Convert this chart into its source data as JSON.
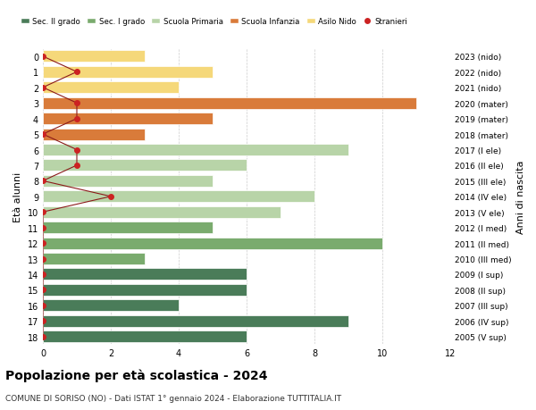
{
  "ages": [
    18,
    17,
    16,
    15,
    14,
    13,
    12,
    11,
    10,
    9,
    8,
    7,
    6,
    5,
    4,
    3,
    2,
    1,
    0
  ],
  "right_labels": [
    "2005 (V sup)",
    "2006 (IV sup)",
    "2007 (III sup)",
    "2008 (II sup)",
    "2009 (I sup)",
    "2010 (III med)",
    "2011 (II med)",
    "2012 (I med)",
    "2013 (V ele)",
    "2014 (IV ele)",
    "2015 (III ele)",
    "2016 (II ele)",
    "2017 (I ele)",
    "2018 (mater)",
    "2019 (mater)",
    "2020 (mater)",
    "2021 (nido)",
    "2022 (nido)",
    "2023 (nido)"
  ],
  "bar_values": [
    6,
    9,
    4,
    6,
    6,
    3,
    10,
    5,
    7,
    8,
    5,
    6,
    9,
    3,
    5,
    11,
    4,
    5,
    3
  ],
  "bar_colors": [
    "#4a7c59",
    "#4a7c59",
    "#4a7c59",
    "#4a7c59",
    "#4a7c59",
    "#7aab6e",
    "#7aab6e",
    "#7aab6e",
    "#b8d4a8",
    "#b8d4a8",
    "#b8d4a8",
    "#b8d4a8",
    "#b8d4a8",
    "#d97b3a",
    "#d97b3a",
    "#d97b3a",
    "#f5d87a",
    "#f5d87a",
    "#f5d87a"
  ],
  "stranieri_values": [
    0,
    0,
    0,
    0,
    0,
    0,
    0,
    0,
    0,
    2,
    0,
    1,
    1,
    0,
    1,
    1,
    0,
    1,
    0
  ],
  "legend_labels": [
    "Sec. II grado",
    "Sec. I grado",
    "Scuola Primaria",
    "Scuola Infanzia",
    "Asilo Nido",
    "Stranieri"
  ],
  "legend_colors": [
    "#4a7c59",
    "#7aab6e",
    "#b8d4a8",
    "#d97b3a",
    "#f5d87a",
    "#cc2222"
  ],
  "title": "Popolazione per età scolastica - 2024",
  "subtitle": "COMUNE DI SORISO (NO) - Dati ISTAT 1° gennaio 2024 - Elaborazione TUTTITALIA.IT",
  "ylabel_left": "Età alunni",
  "ylabel_right": "Anni di nascita",
  "xlim": [
    0,
    12
  ],
  "bg_color": "#ffffff",
  "grid_color": "#cccccc"
}
